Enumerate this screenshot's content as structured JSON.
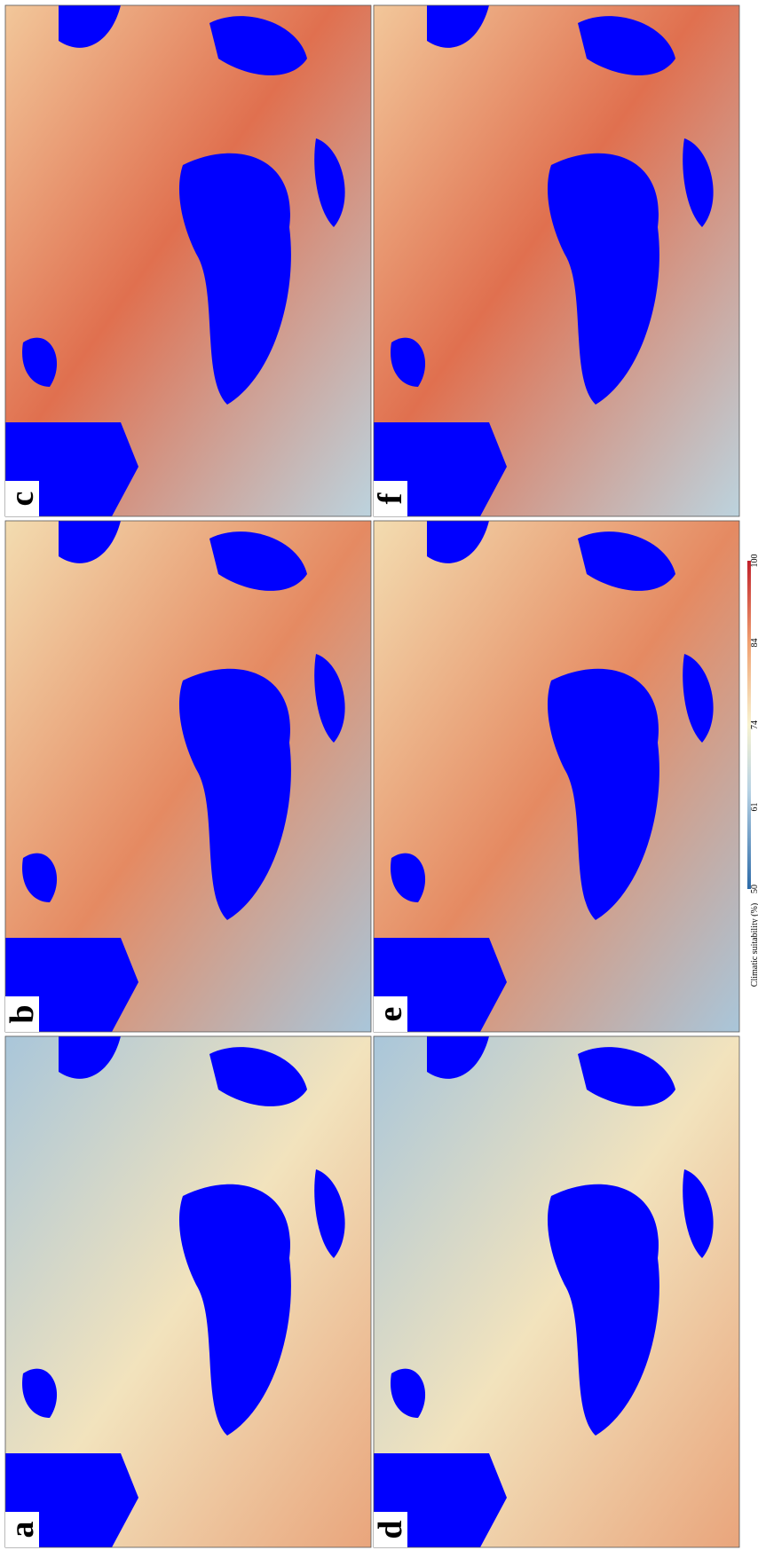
{
  "panels": [
    {
      "label": "a"
    },
    {
      "label": "b"
    },
    {
      "label": "c"
    },
    {
      "label": "d"
    },
    {
      "label": "e"
    },
    {
      "label": "f"
    }
  ],
  "colorbar": {
    "title": "Climatic suitability (%)",
    "ticks": [
      50,
      61,
      74,
      84,
      100
    ]
  }
}
